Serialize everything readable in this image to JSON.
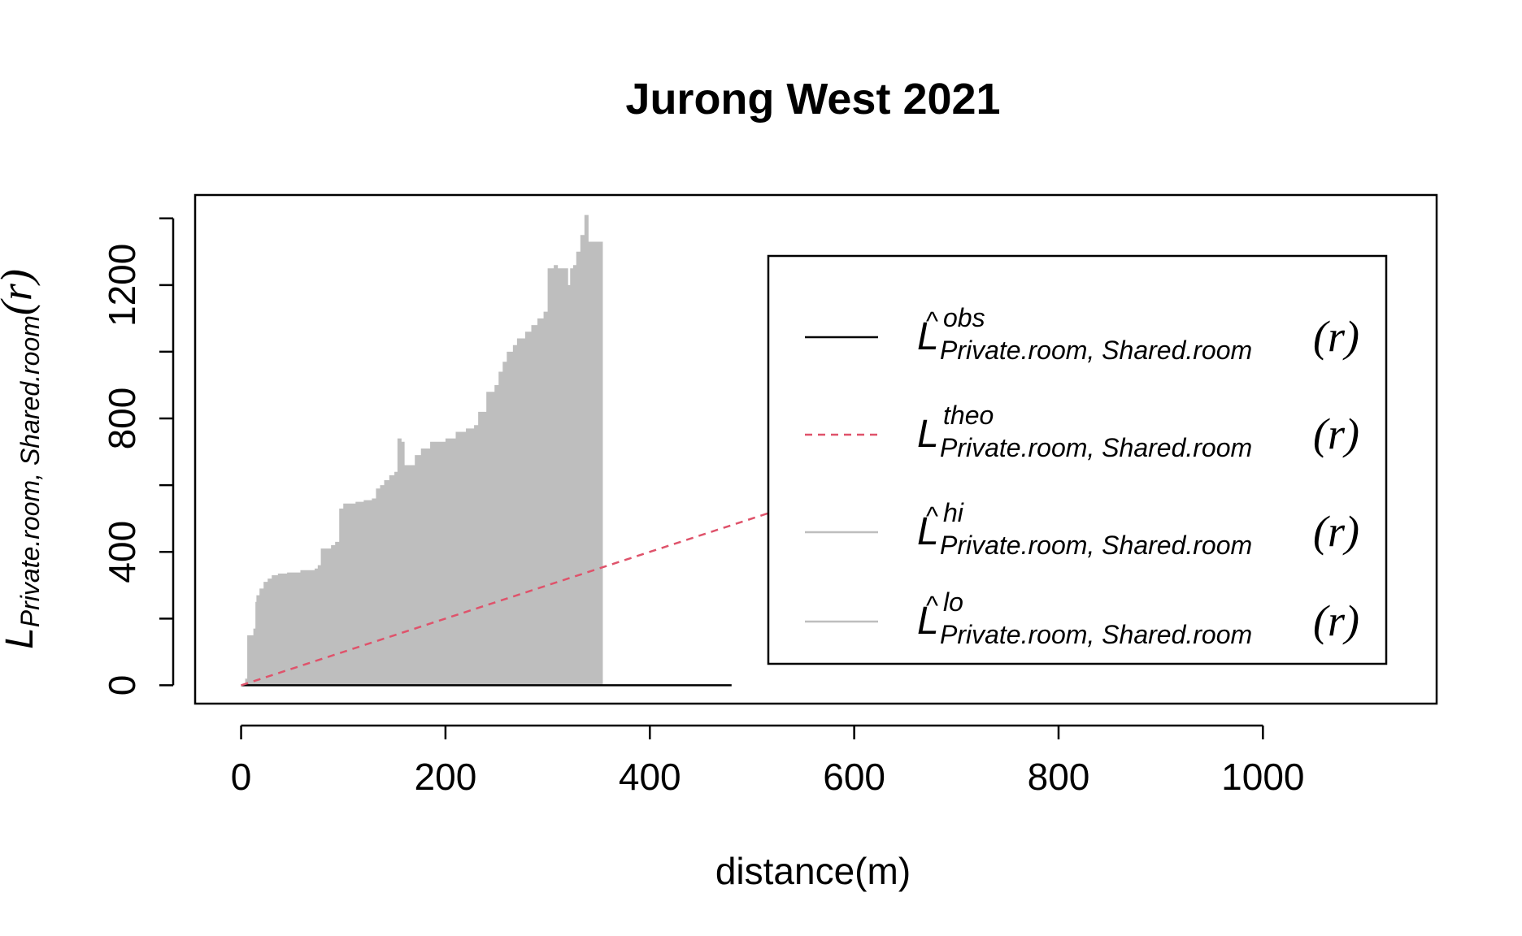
{
  "chart_data": {
    "type": "line",
    "title": "Jurong West 2021",
    "xlabel": "distance(m)",
    "ylabel": {
      "main": "L",
      "subscript": "Private.room, Shared.room",
      "arg": "(r)"
    },
    "xlim": [
      -45,
      1170
    ],
    "ylim": [
      -55,
      1470
    ],
    "x_ticks": [
      0,
      200,
      400,
      600,
      800,
      1000
    ],
    "y_ticks": [
      0,
      400,
      800,
      1200
    ],
    "y_minor_ticks": [
      0,
      200,
      400,
      600,
      800,
      1000,
      1200,
      1400
    ],
    "grid": false,
    "legend_position": "top-right",
    "colors": {
      "obs": "#000000",
      "theo": "#DF536B",
      "envelope": "#BEBEBE"
    },
    "legend": [
      {
        "main": "L",
        "hat": true,
        "superscript": "obs",
        "subscript": "Private.room, Shared.room",
        "arg": "(r)",
        "style": "solid",
        "color": "#000000"
      },
      {
        "main": "L",
        "hat": false,
        "superscript": "theo",
        "subscript": "Private.room, Shared.room",
        "arg": "(r)",
        "style": "dashed",
        "color": "#DF536B"
      },
      {
        "main": "L",
        "hat": true,
        "superscript": "hi",
        "subscript": "Private.room, Shared.room",
        "arg": "(r)",
        "style": "solid",
        "color": "#BEBEBE"
      },
      {
        "main": "L",
        "hat": true,
        "superscript": "lo",
        "subscript": "Private.room, Shared.room",
        "arg": "(r)",
        "style": "solid",
        "color": "#BEBEBE"
      }
    ],
    "series": [
      {
        "name": "obs",
        "x": [
          0,
          480
        ],
        "y": [
          0,
          0
        ]
      },
      {
        "name": "theo",
        "x": [
          0,
          1125
        ],
        "y": [
          0,
          1125
        ]
      },
      {
        "name": "hi",
        "x": [
          0,
          4,
          6,
          12,
          14,
          15,
          18,
          22,
          26,
          30,
          36,
          45,
          58,
          72,
          75,
          78,
          88,
          92,
          96,
          100,
          112,
          120,
          128,
          132,
          136,
          140,
          145,
          150,
          153,
          157,
          160,
          170,
          176,
          185,
          200,
          210,
          220,
          228,
          232,
          240,
          248,
          252,
          256,
          260,
          266,
          270,
          278,
          284,
          290,
          296,
          300,
          306,
          310,
          320,
          322,
          325,
          328,
          332,
          336,
          340,
          354
        ],
        "y": [
          0,
          20,
          150,
          170,
          250,
          270,
          290,
          310,
          320,
          330,
          335,
          338,
          345,
          350,
          360,
          410,
          420,
          430,
          530,
          545,
          550,
          555,
          560,
          590,
          600,
          615,
          630,
          640,
          740,
          730,
          660,
          690,
          710,
          730,
          740,
          760,
          770,
          780,
          820,
          880,
          900,
          940,
          970,
          1000,
          1020,
          1040,
          1060,
          1080,
          1100,
          1120,
          1250,
          1260,
          1250,
          1200,
          1250,
          1260,
          1300,
          1350,
          1410,
          1330,
          1330
        ]
      },
      {
        "name": "lo",
        "x": [
          0,
          354
        ],
        "y": [
          0,
          0
        ]
      }
    ]
  }
}
